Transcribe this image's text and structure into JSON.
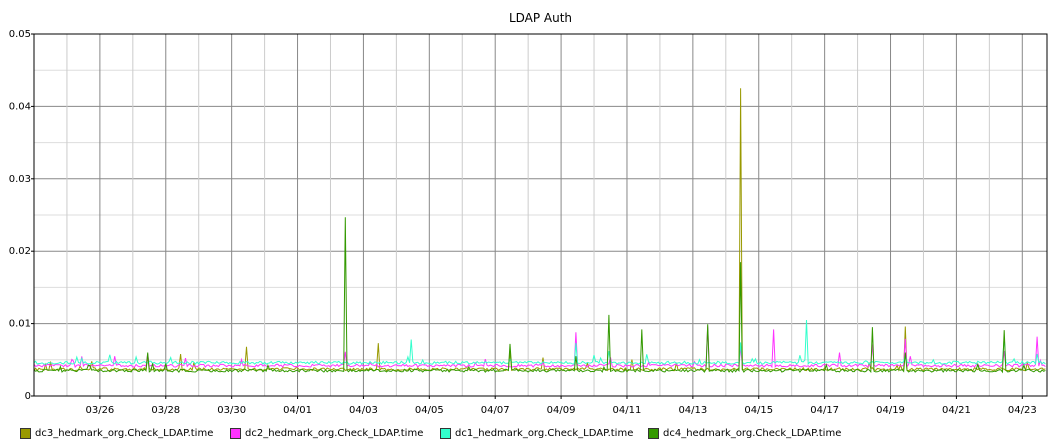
{
  "chart_data": {
    "type": "line",
    "title": "LDAP Auth",
    "xlabel": "",
    "ylabel": "",
    "xlim": [
      "03/24",
      "04/23"
    ],
    "ylim": [
      0,
      0.05
    ],
    "y_ticks": [
      "0",
      "0.01",
      "0.02",
      "0.03",
      "0.04",
      "0.05"
    ],
    "x_ticks": [
      "03/26",
      "03/28",
      "03/30",
      "04/01",
      "04/03",
      "04/05",
      "04/07",
      "04/09",
      "04/11",
      "04/13",
      "04/15",
      "04/17",
      "04/19",
      "04/21",
      "04/23"
    ],
    "grid": true,
    "legend_position": "bottom",
    "series": [
      {
        "name": "dc3_hedmark_org.Check_LDAP.time",
        "color": "#999900",
        "baseline": 0.0037,
        "spikes": [
          {
            "x": "03/27",
            "y": 0.0055
          },
          {
            "x": "03/28",
            "y": 0.0058
          },
          {
            "x": "03/30",
            "y": 0.0068
          },
          {
            "x": "04/03",
            "y": 0.0073
          },
          {
            "x": "04/07",
            "y": 0.0062
          },
          {
            "x": "04/08",
            "y": 0.0053
          },
          {
            "x": "04/14",
            "y": 0.0425
          },
          {
            "x": "04/19",
            "y": 0.0096
          }
        ]
      },
      {
        "name": "dc2_hedmark_org.Check_LDAP.time",
        "color": "#ff33ff",
        "baseline": 0.0042,
        "spikes": [
          {
            "x": "03/26",
            "y": 0.0055
          },
          {
            "x": "03/27",
            "y": 0.0058
          },
          {
            "x": "04/02",
            "y": 0.0061
          },
          {
            "x": "04/09",
            "y": 0.0088
          },
          {
            "x": "04/13",
            "y": 0.0096
          },
          {
            "x": "04/14",
            "y": 0.0068
          },
          {
            "x": "04/15",
            "y": 0.0092
          },
          {
            "x": "04/17",
            "y": 0.006
          },
          {
            "x": "04/18",
            "y": 0.0071
          },
          {
            "x": "04/19",
            "y": 0.0079
          },
          {
            "x": "04/22",
            "y": 0.0062
          },
          {
            "x": "04/23",
            "y": 0.0082
          }
        ]
      },
      {
        "name": "dc1_hedmark_org.Check_LDAP.time",
        "color": "#33ffcc",
        "baseline": 0.0046,
        "spikes": [
          {
            "x": "03/25",
            "y": 0.0052
          },
          {
            "x": "04/04",
            "y": 0.0078
          },
          {
            "x": "04/09",
            "y": 0.0073
          },
          {
            "x": "04/10",
            "y": 0.0062
          },
          {
            "x": "04/14",
            "y": 0.0074
          },
          {
            "x": "04/16",
            "y": 0.0105
          },
          {
            "x": "04/19",
            "y": 0.0057
          },
          {
            "x": "04/22",
            "y": 0.0081
          },
          {
            "x": "04/23",
            "y": 0.0058
          }
        ]
      },
      {
        "name": "dc4_hedmark_org.Check_LDAP.time",
        "color": "#339900",
        "baseline": 0.0035,
        "spikes": [
          {
            "x": "03/27",
            "y": 0.006
          },
          {
            "x": "04/02",
            "y": 0.0247
          },
          {
            "x": "04/07",
            "y": 0.0072
          },
          {
            "x": "04/09",
            "y": 0.0055
          },
          {
            "x": "04/10",
            "y": 0.0112
          },
          {
            "x": "04/11",
            "y": 0.0092
          },
          {
            "x": "04/13",
            "y": 0.0099
          },
          {
            "x": "04/14",
            "y": 0.0185
          },
          {
            "x": "04/18",
            "y": 0.0095
          },
          {
            "x": "04/19",
            "y": 0.006
          },
          {
            "x": "04/22",
            "y": 0.0091
          }
        ]
      }
    ]
  }
}
